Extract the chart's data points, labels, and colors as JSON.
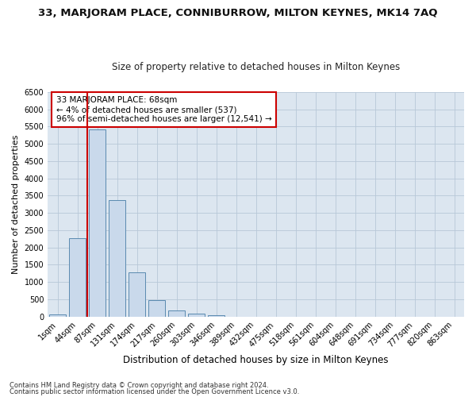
{
  "title": "33, MARJORAM PLACE, CONNIBURROW, MILTON KEYNES, MK14 7AQ",
  "subtitle": "Size of property relative to detached houses in Milton Keynes",
  "xlabel": "Distribution of detached houses by size in Milton Keynes",
  "ylabel": "Number of detached properties",
  "categories": [
    "1sqm",
    "44sqm",
    "87sqm",
    "131sqm",
    "174sqm",
    "217sqm",
    "260sqm",
    "303sqm",
    "346sqm",
    "389sqm",
    "432sqm",
    "475sqm",
    "518sqm",
    "561sqm",
    "604sqm",
    "648sqm",
    "691sqm",
    "734sqm",
    "777sqm",
    "820sqm",
    "863sqm"
  ],
  "bar_heights": [
    70,
    2270,
    5420,
    3380,
    1290,
    480,
    190,
    90,
    50,
    0,
    0,
    0,
    0,
    0,
    0,
    0,
    0,
    0,
    0,
    0,
    0
  ],
  "bar_color": "#c9d9eb",
  "bar_edge_color": "#5a8ab0",
  "vline_x": 1.5,
  "vline_color": "#cc0000",
  "annotation_text": "33 MARJORAM PLACE: 68sqm\n← 4% of detached houses are smaller (537)\n96% of semi-detached houses are larger (12,541) →",
  "annotation_box_color": "#ffffff",
  "annotation_box_edge_color": "#cc0000",
  "ylim": [
    0,
    6500
  ],
  "yticks": [
    0,
    500,
    1000,
    1500,
    2000,
    2500,
    3000,
    3500,
    4000,
    4500,
    5000,
    5500,
    6000,
    6500
  ],
  "background_color": "#ffffff",
  "plot_bg_color": "#dce6f0",
  "grid_color": "#b8c8d8",
  "title_fontsize": 9.5,
  "subtitle_fontsize": 8.5,
  "axis_label_fontsize": 8,
  "tick_fontsize": 7,
  "footer1": "Contains HM Land Registry data © Crown copyright and database right 2024.",
  "footer2": "Contains public sector information licensed under the Open Government Licence v3.0."
}
